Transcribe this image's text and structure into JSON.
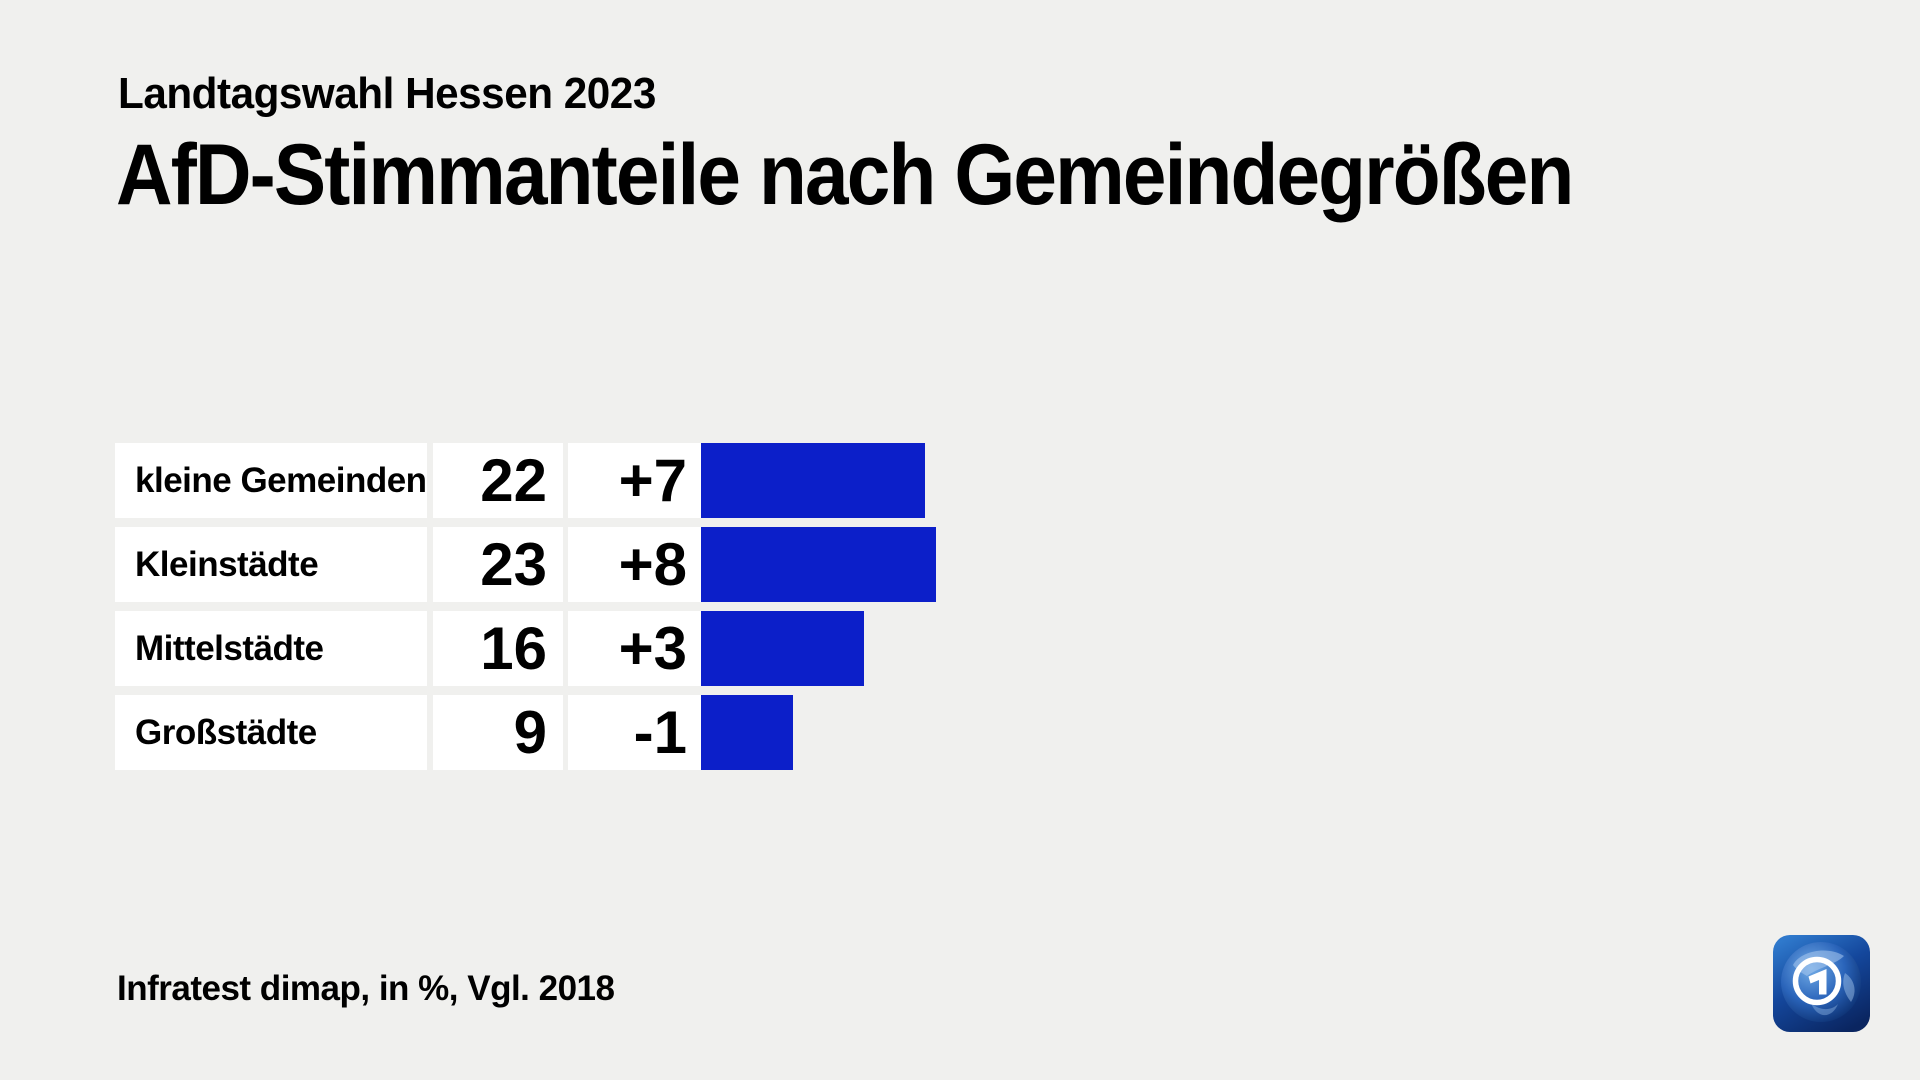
{
  "page": {
    "background": "#f0f0ee"
  },
  "header": {
    "subtitle": "Landtagswahl Hessen 2023",
    "title": "AfD-Stimmanteile nach Gemeindegrößen"
  },
  "chart_data": {
    "type": "bar",
    "orientation": "horizontal",
    "title": "AfD-Stimmanteile nach Gemeindegrößen",
    "subtitle": "Landtagswahl Hessen 2023",
    "unit": "%",
    "categories": [
      "kleine Gemeinden",
      "Kleinstädte",
      "Mittelstädte",
      "Großstädte"
    ],
    "values": [
      22,
      23,
      16,
      9
    ],
    "changes": [
      "+7",
      "+8",
      "+3",
      "-1"
    ],
    "comparison": "Vgl. 2018",
    "bar_color": "#0c1fc9",
    "xlim": [
      0,
      24
    ],
    "grid": false,
    "legend": false
  },
  "footer": {
    "source": "Infratest dimap, in %, Vgl. 2018"
  },
  "icons": {
    "logo": "ard-tagesschau-logo"
  }
}
